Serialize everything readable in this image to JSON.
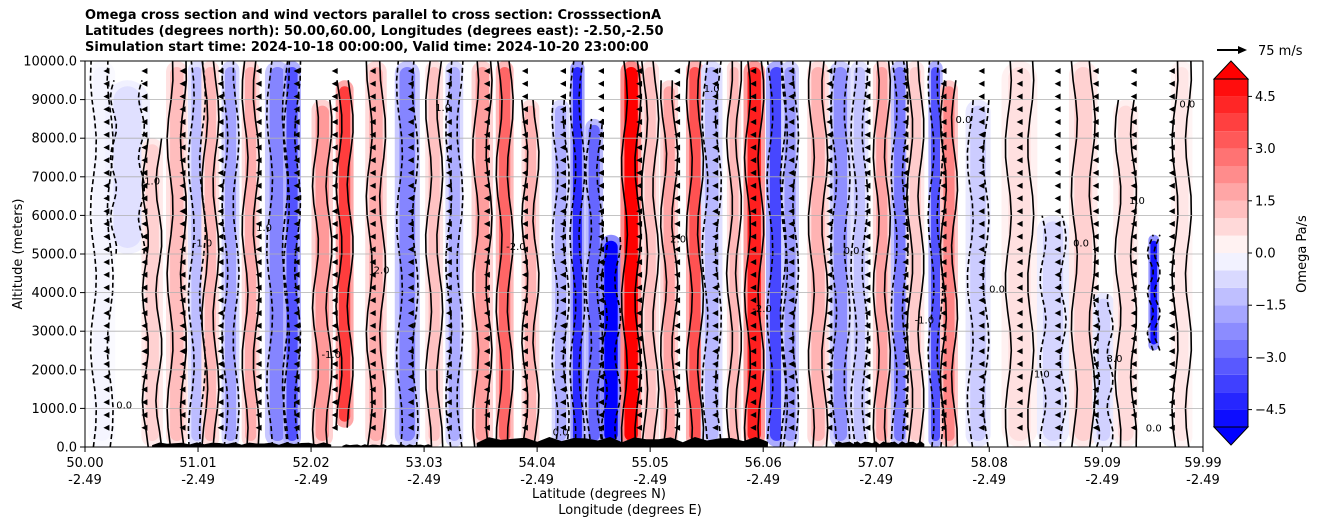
{
  "chart_data": {
    "type": "heatmap",
    "title_lines": [
      "Omega cross section and wind vectors parallel to cross section: CrosssectionA",
      "Latitudes (degrees north): 50.00,60.00, Longitudes (degrees east): -2.50,-2.50",
      "Simulation start time: 2024-10-18 00:00:00, Valid time: 2024-10-20 23:00:00"
    ],
    "xlabel_line1": "Latitude (degrees N)",
    "xlabel_line2": "Longitude (degrees E)",
    "ylabel": "Altitude (meters)",
    "xlim": [
      50.0,
      59.99
    ],
    "ylim": [
      0,
      10000
    ],
    "x_ticks": [
      {
        "lat": "50.00",
        "lon": "-2.49",
        "value": 50.0
      },
      {
        "lat": "51.01",
        "lon": "-2.49",
        "value": 51.01
      },
      {
        "lat": "52.02",
        "lon": "-2.49",
        "value": 52.02
      },
      {
        "lat": "53.03",
        "lon": "-2.49",
        "value": 53.03
      },
      {
        "lat": "54.04",
        "lon": "-2.49",
        "value": 54.04
      },
      {
        "lat": "55.05",
        "lon": "-2.49",
        "value": 55.05
      },
      {
        "lat": "56.06",
        "lon": "-2.49",
        "value": 56.06
      },
      {
        "lat": "57.07",
        "lon": "-2.49",
        "value": 57.07
      },
      {
        "lat": "58.08",
        "lon": "-2.49",
        "value": 58.08
      },
      {
        "lat": "59.09",
        "lon": "-2.49",
        "value": 59.09
      },
      {
        "lat": "59.99",
        "lon": "-2.49",
        "value": 59.99
      }
    ],
    "y_ticks": [
      {
        "label": "0.0",
        "value": 0
      },
      {
        "label": "1000.0",
        "value": 1000
      },
      {
        "label": "2000.0",
        "value": 2000
      },
      {
        "label": "3000.0",
        "value": 3000
      },
      {
        "label": "4000.0",
        "value": 4000
      },
      {
        "label": "5000.0",
        "value": 5000
      },
      {
        "label": "6000.0",
        "value": 6000
      },
      {
        "label": "7000.0",
        "value": 7000
      },
      {
        "label": "8000.0",
        "value": 8000
      },
      {
        "label": "9000.0",
        "value": 9000
      },
      {
        "label": "10000.0",
        "value": 10000
      }
    ],
    "grid": "horizontal",
    "colorbar": {
      "label": "Omega Pa/s",
      "range": [
        -5,
        5
      ],
      "extend": "both",
      "ticks": [
        {
          "label": "4.5",
          "value": 4.5
        },
        {
          "label": "3.0",
          "value": 3.0
        },
        {
          "label": "1.5",
          "value": 1.5
        },
        {
          "label": "0.0",
          "value": 0.0
        },
        {
          "label": "−1.5",
          "value": -1.5
        },
        {
          "label": "−3.0",
          "value": -3.0
        },
        {
          "label": "−4.5",
          "value": -4.5
        }
      ],
      "colors": {
        "negative_max": "#0000ff",
        "zero": "#ffffff",
        "positive_max": "#ff0000"
      }
    },
    "quiver_key": {
      "label": "75 m/s",
      "speed": 75
    },
    "omega_bands": [
      {
        "lat": 50.15,
        "width": 0.15,
        "value": -0.2,
        "from": 0,
        "to": 10000
      },
      {
        "lat": 50.38,
        "width": 0.25,
        "value": -0.6,
        "from": 5000,
        "to": 9500
      },
      {
        "lat": 50.6,
        "width": 0.12,
        "value": 0.9,
        "from": 0,
        "to": 8000
      },
      {
        "lat": 50.82,
        "width": 0.12,
        "value": 1.3,
        "from": 0,
        "to": 10000
      },
      {
        "lat": 51.0,
        "width": 0.1,
        "value": -1.3,
        "from": 0,
        "to": 10000
      },
      {
        "lat": 51.12,
        "width": 0.1,
        "value": 1.4,
        "from": 0,
        "to": 10000
      },
      {
        "lat": 51.3,
        "width": 0.1,
        "value": -1.8,
        "from": 0,
        "to": 10000
      },
      {
        "lat": 51.48,
        "width": 0.1,
        "value": 1.6,
        "from": 0,
        "to": 10000
      },
      {
        "lat": 51.72,
        "width": 0.14,
        "value": -2.4,
        "from": 0,
        "to": 10000
      },
      {
        "lat": 51.85,
        "width": 0.1,
        "value": -3.4,
        "from": 0,
        "to": 10000
      },
      {
        "lat": 52.12,
        "width": 0.12,
        "value": 2.0,
        "from": 0,
        "to": 9000
      },
      {
        "lat": 52.32,
        "width": 0.1,
        "value": 3.8,
        "from": 500,
        "to": 9500
      },
      {
        "lat": 52.6,
        "width": 0.12,
        "value": 1.6,
        "from": 0,
        "to": 10000
      },
      {
        "lat": 52.88,
        "width": 0.14,
        "value": -2.4,
        "from": 0,
        "to": 10000
      },
      {
        "lat": 53.12,
        "width": 0.1,
        "value": 1.2,
        "from": 0,
        "to": 10000
      },
      {
        "lat": 53.3,
        "width": 0.1,
        "value": -1.6,
        "from": 0,
        "to": 10000
      },
      {
        "lat": 53.55,
        "width": 0.12,
        "value": 1.9,
        "from": 0,
        "to": 10000
      },
      {
        "lat": 53.75,
        "width": 0.1,
        "value": 3.0,
        "from": 0,
        "to": 10000
      },
      {
        "lat": 53.98,
        "width": 0.1,
        "value": 1.5,
        "from": 0,
        "to": 9000
      },
      {
        "lat": 54.25,
        "width": 0.1,
        "value": -1.6,
        "from": 0,
        "to": 9000
      },
      {
        "lat": 54.4,
        "width": 0.08,
        "value": -4.2,
        "from": 0,
        "to": 10000
      },
      {
        "lat": 54.55,
        "width": 0.1,
        "value": -3.0,
        "from": 0,
        "to": 8500
      },
      {
        "lat": 54.7,
        "width": 0.12,
        "value": -5.0,
        "from": 0,
        "to": 5500
      },
      {
        "lat": 54.88,
        "width": 0.12,
        "value": 5.0,
        "from": 0,
        "to": 10000
      },
      {
        "lat": 55.05,
        "width": 0.1,
        "value": 1.2,
        "from": 0,
        "to": 10000
      },
      {
        "lat": 55.22,
        "width": 0.1,
        "value": 1.8,
        "from": 0,
        "to": 9500
      },
      {
        "lat": 55.45,
        "width": 0.1,
        "value": 3.4,
        "from": 0,
        "to": 10000
      },
      {
        "lat": 55.6,
        "width": 0.12,
        "value": -1.4,
        "from": 0,
        "to": 10000
      },
      {
        "lat": 55.8,
        "width": 0.08,
        "value": 1.4,
        "from": 0,
        "to": 10000
      },
      {
        "lat": 55.98,
        "width": 0.12,
        "value": 4.4,
        "from": 0,
        "to": 10000
      },
      {
        "lat": 56.18,
        "width": 0.12,
        "value": -3.6,
        "from": 0,
        "to": 10000
      },
      {
        "lat": 56.3,
        "width": 0.1,
        "value": -2.0,
        "from": 0,
        "to": 10000
      },
      {
        "lat": 56.55,
        "width": 0.12,
        "value": 1.5,
        "from": 0,
        "to": 10000
      },
      {
        "lat": 56.75,
        "width": 0.12,
        "value": -2.2,
        "from": 0,
        "to": 10000
      },
      {
        "lat": 56.92,
        "width": 0.1,
        "value": -1.2,
        "from": 0,
        "to": 10000
      },
      {
        "lat": 57.12,
        "width": 0.1,
        "value": 1.8,
        "from": 0,
        "to": 10000
      },
      {
        "lat": 57.28,
        "width": 0.1,
        "value": -2.6,
        "from": 0,
        "to": 10000
      },
      {
        "lat": 57.42,
        "width": 0.1,
        "value": 1.0,
        "from": 0,
        "to": 10000
      },
      {
        "lat": 57.6,
        "width": 0.08,
        "value": -3.4,
        "from": 0,
        "to": 10000
      },
      {
        "lat": 57.72,
        "width": 0.1,
        "value": 2.4,
        "from": 0,
        "to": 9500
      },
      {
        "lat": 57.98,
        "width": 0.14,
        "value": -1.0,
        "from": 0,
        "to": 9000
      },
      {
        "lat": 58.35,
        "width": 0.2,
        "value": 0.6,
        "from": 0,
        "to": 10000
      },
      {
        "lat": 58.65,
        "width": 0.18,
        "value": -0.8,
        "from": 0,
        "to": 6000
      },
      {
        "lat": 58.92,
        "width": 0.16,
        "value": 0.9,
        "from": 0,
        "to": 10000
      },
      {
        "lat": 59.1,
        "width": 0.12,
        "value": -0.9,
        "from": 0,
        "to": 4000
      },
      {
        "lat": 59.3,
        "width": 0.14,
        "value": 0.7,
        "from": 0,
        "to": 9000
      },
      {
        "lat": 59.55,
        "width": 0.06,
        "value": -4.6,
        "from": 2500,
        "to": 5500
      },
      {
        "lat": 59.8,
        "width": 0.12,
        "value": 0.5,
        "from": 0,
        "to": 10000
      }
    ],
    "contour_labels": [
      "0.0",
      "1.0",
      "-1.0",
      "2.0",
      "-2.0",
      "3.0"
    ],
    "annotations": [
      "0.0",
      "0.0",
      "0.0"
    ]
  }
}
